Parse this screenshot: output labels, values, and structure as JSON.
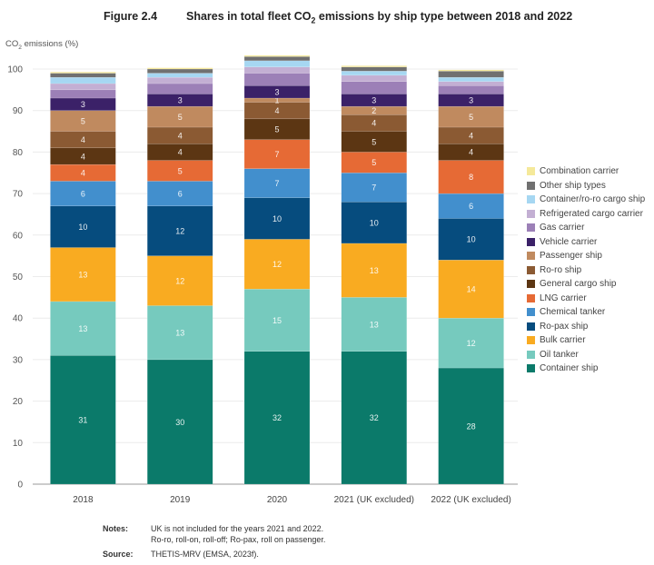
{
  "figure": {
    "number": "Figure 2.4",
    "title_pre": "Shares in total fleet CO",
    "title_sub": "2",
    "title_post": " emissions by ship type between 2018 and 2022"
  },
  "notes": {
    "notes_label": "Notes:",
    "notes_line1": "UK is not included for the years 2021 and 2022.",
    "notes_line2": "Ro-ro, roll-on, roll-off; Ro-pax, roll on passenger.",
    "source_label": "Source:",
    "source_text": "THETIS-MRV (EMSA, 2023f)."
  },
  "chart_data": {
    "type": "bar",
    "stacked": true,
    "title": "Shares in total fleet CO2 emissions by ship type between 2018 and 2022",
    "xlabel": "",
    "ylabel_pre": "CO",
    "ylabel_sub": "2",
    "ylabel_post": " emissions (%)",
    "ylim": [
      0,
      100
    ],
    "yticks": [
      0,
      10,
      20,
      30,
      40,
      50,
      60,
      70,
      80,
      90,
      100
    ],
    "grid": true,
    "legend_position": "right",
    "categories": [
      "2018",
      "2019",
      "2020",
      "2021 (UK excluded)",
      "2022 (UK excluded)"
    ],
    "series": [
      {
        "name": "Container ship",
        "color": "#0b7a6a",
        "values": [
          31,
          30,
          32,
          32,
          28
        ],
        "labels": [
          "31",
          "30",
          "32",
          "32",
          "28"
        ]
      },
      {
        "name": "Oil tanker",
        "color": "#76cabe",
        "values": [
          13,
          13,
          15,
          13,
          12
        ],
        "labels": [
          "13",
          "13",
          "15",
          "13",
          "12"
        ]
      },
      {
        "name": "Bulk carrier",
        "color": "#f9ab21",
        "values": [
          13,
          12,
          12,
          13,
          14
        ],
        "labels": [
          "13",
          "12",
          "12",
          "13",
          "14"
        ]
      },
      {
        "name": "Ro-pax ship",
        "color": "#064c7e",
        "values": [
          10,
          12,
          10,
          10,
          10
        ],
        "labels": [
          "10",
          "12",
          "10",
          "10",
          "10"
        ]
      },
      {
        "name": "Chemical tanker",
        "color": "#428fcd",
        "values": [
          6,
          6,
          7,
          7,
          6
        ],
        "labels": [
          "6",
          "6",
          "7",
          "7",
          "6"
        ]
      },
      {
        "name": "LNG carrier",
        "color": "#e66a35",
        "values": [
          4,
          5,
          7,
          5,
          8
        ],
        "labels": [
          "4",
          "5",
          "7",
          "5",
          "8"
        ]
      },
      {
        "name": "General cargo ship",
        "color": "#5c3613",
        "values": [
          4,
          4,
          5,
          5,
          4
        ],
        "labels": [
          "4",
          "4",
          "5",
          "5",
          "4"
        ]
      },
      {
        "name": "Ro-ro ship",
        "color": "#8b5a33",
        "values": [
          4,
          4,
          4,
          4,
          4
        ],
        "labels": [
          "4",
          "4",
          "4",
          "4",
          "4"
        ]
      },
      {
        "name": "Passenger ship",
        "color": "#c08a5f",
        "values": [
          5,
          5,
          1,
          2,
          5
        ],
        "labels": [
          "5",
          "5",
          "1",
          "2",
          "5"
        ]
      },
      {
        "name": "Vehicle carrier",
        "color": "#3b2168",
        "values": [
          3,
          3,
          3,
          3,
          3
        ],
        "labels": [
          "3",
          "3",
          "3",
          "3",
          "3"
        ]
      },
      {
        "name": "Gas carrier",
        "color": "#9c80b7",
        "values": [
          2,
          2.5,
          3,
          3,
          2
        ],
        "labels": [
          "",
          "",
          "",
          "",
          ""
        ]
      },
      {
        "name": "Refrigerated cargo carrier",
        "color": "#c3afd3",
        "values": [
          1.5,
          1.5,
          1.5,
          1.5,
          1
        ],
        "labels": [
          "",
          "",
          "",
          "",
          ""
        ]
      },
      {
        "name": "Container/ro-ro cargo ship",
        "color": "#a6d7f2",
        "values": [
          1.5,
          1,
          1.5,
          1,
          1
        ],
        "labels": [
          "",
          "",
          "",
          "",
          ""
        ]
      },
      {
        "name": "Other ship types",
        "color": "#707070",
        "values": [
          1,
          1,
          1,
          1,
          1.5
        ],
        "labels": [
          "",
          "",
          "",
          "",
          ""
        ]
      },
      {
        "name": "Combination carrier",
        "color": "#f5e99a",
        "values": [
          0.3,
          0.3,
          0.3,
          0.3,
          0.3
        ],
        "labels": [
          "",
          "",
          "",
          "",
          ""
        ]
      }
    ]
  }
}
